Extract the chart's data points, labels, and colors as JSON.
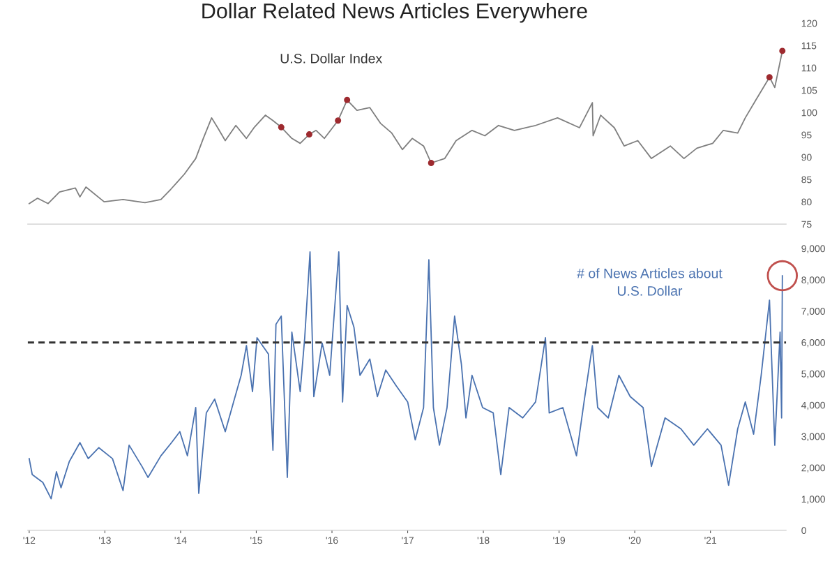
{
  "chart_data": [
    {
      "type": "line",
      "title": "Dollar Related News Articles Everywhere",
      "xlim": [
        2011.98,
        2022.0
      ],
      "ylim": [
        75,
        120
      ],
      "yticks": [
        75,
        80,
        85,
        90,
        95,
        100,
        105,
        110,
        115,
        120
      ],
      "tick_labels": "y",
      "series": [
        {
          "name": "U.S. Dollar Index",
          "color": "#7f7f7f",
          "x": [
            2012.0,
            2012.11,
            2012.25,
            2012.4,
            2012.61,
            2012.67,
            2012.75,
            2012.99,
            2013.24,
            2013.53,
            2013.74,
            2013.87,
            2014.05,
            2014.2,
            2014.3,
            2014.41,
            2014.49,
            2014.59,
            2014.73,
            2014.87,
            2014.97,
            2015.12,
            2015.22,
            2015.33,
            2015.47,
            2015.58,
            2015.7,
            2015.79,
            2015.9,
            2016.08,
            2016.2,
            2016.33,
            2016.5,
            2016.64,
            2016.79,
            2016.93,
            2017.06,
            2017.21,
            2017.31,
            2017.49,
            2017.64,
            2017.85,
            2018.02,
            2018.2,
            2018.41,
            2018.69,
            2018.98,
            2019.27,
            2019.44,
            2019.45,
            2019.55,
            2019.73,
            2019.86,
            2020.04,
            2020.22,
            2020.47,
            2020.65,
            2020.82,
            2021.03,
            2021.17,
            2021.36,
            2021.46,
            2021.6,
            2021.78,
            2021.85,
            2021.95
          ],
          "values": [
            79.6,
            80.8,
            79.6,
            82.2,
            83.1,
            81.1,
            83.3,
            80.0,
            80.5,
            79.8,
            80.5,
            82.8,
            86.2,
            89.7,
            94.2,
            98.8,
            96.6,
            93.7,
            97.1,
            94.2,
            96.6,
            99.4,
            98.2,
            96.7,
            94.2,
            93.1,
            95.1,
            96.0,
            94.2,
            98.2,
            102.8,
            100.5,
            101.1,
            97.6,
            95.4,
            91.7,
            94.2,
            92.5,
            88.7,
            89.7,
            93.7,
            96.0,
            94.8,
            97.1,
            96.0,
            97.1,
            98.8,
            96.6,
            102.2,
            94.8,
            99.4,
            96.6,
            92.5,
            93.7,
            89.7,
            92.5,
            89.7,
            92.0,
            93.1,
            96.0,
            95.4,
            98.8,
            102.8,
            107.9,
            105.6,
            113.8
          ]
        },
        {
          "type": "scatter",
          "color": "#9e2a2f",
          "x": [
            2015.33,
            2015.7,
            2016.08,
            2016.2,
            2017.31,
            2021.78,
            2021.95
          ],
          "values": [
            96.7,
            95.1,
            98.2,
            102.8,
            88.7,
            107.9,
            113.8
          ]
        }
      ]
    },
    {
      "type": "line",
      "xlim": [
        2011.98,
        2022.0
      ],
      "ylim": [
        0,
        9000
      ],
      "xticks": [
        {
          "value": 2012,
          "label": "'12"
        },
        {
          "value": 2013,
          "label": "'13"
        },
        {
          "value": 2014,
          "label": "'14"
        },
        {
          "value": 2015,
          "label": "'15"
        },
        {
          "value": 2016,
          "label": "'16"
        },
        {
          "value": 2017,
          "label": "'17"
        },
        {
          "value": 2018,
          "label": "'18"
        },
        {
          "value": 2019,
          "label": "'19"
        },
        {
          "value": 2020,
          "label": "'20"
        },
        {
          "value": 2021,
          "label": "'21"
        }
      ],
      "yticks": [
        0,
        {
          "value": 1000,
          "label": "1,000"
        },
        {
          "value": 2000,
          "label": "2,000"
        },
        {
          "value": 3000,
          "label": "3,000"
        },
        {
          "value": 4000,
          "label": "4,000"
        },
        {
          "value": 5000,
          "label": "5,000"
        },
        {
          "value": 6000,
          "label": "6,000"
        },
        {
          "value": 7000,
          "label": "7,000"
        },
        {
          "value": 8000,
          "label": "8,000"
        },
        {
          "value": 9000,
          "label": "9,000"
        }
      ],
      "ref_lines": [
        {
          "axis": "y",
          "value": 6000,
          "color": "#333333",
          "line_style": "dashed"
        }
      ],
      "series": [
        {
          "name": "# of News Articles about\nU.S. Dollar",
          "color": "#4a72b0",
          "x": [
            2012.0,
            2012.04,
            2012.18,
            2012.29,
            2012.36,
            2012.42,
            2012.53,
            2012.67,
            2012.78,
            2012.92,
            2013.1,
            2013.24,
            2013.32,
            2013.49,
            2013.57,
            2013.74,
            2013.88,
            2013.99,
            2014.09,
            2014.2,
            2014.24,
            2014.34,
            2014.45,
            2014.59,
            2014.7,
            2014.8,
            2014.87,
            2014.95,
            2015.01,
            2015.16,
            2015.22,
            2015.26,
            2015.33,
            2015.41,
            2015.47,
            2015.58,
            2015.64,
            2015.71,
            2015.76,
            2015.87,
            2015.97,
            2016.09,
            2016.14,
            2016.2,
            2016.29,
            2016.37,
            2016.5,
            2016.6,
            2016.71,
            2016.85,
            2017.0,
            2017.1,
            2017.21,
            2017.28,
            2017.34,
            2017.42,
            2017.52,
            2017.62,
            2017.71,
            2017.77,
            2017.85,
            2017.99,
            2018.13,
            2018.23,
            2018.34,
            2018.52,
            2018.69,
            2018.82,
            2018.87,
            2019.05,
            2019.23,
            2019.33,
            2019.44,
            2019.51,
            2019.65,
            2019.79,
            2019.94,
            2020.11,
            2020.22,
            2020.4,
            2020.61,
            2020.78,
            2020.96,
            2021.14,
            2021.24,
            2021.36,
            2021.46,
            2021.57,
            2021.67,
            2021.78,
            2021.85,
            2021.92,
            2021.94,
            2021.95
          ],
          "values": [
            2290,
            1780,
            1530,
            1010,
            1870,
            1360,
            2200,
            2800,
            2290,
            2640,
            2290,
            1270,
            2720,
            2040,
            1690,
            2380,
            2800,
            3150,
            2380,
            3920,
            1180,
            3750,
            4190,
            3150,
            4100,
            4950,
            5900,
            4430,
            6150,
            5630,
            2560,
            6580,
            6840,
            1690,
            6330,
            4430,
            6150,
            8890,
            4270,
            5980,
            4950,
            8890,
            4100,
            7180,
            6490,
            4950,
            5470,
            4270,
            5120,
            4610,
            4100,
            2890,
            3920,
            8640,
            3920,
            2720,
            3920,
            6840,
            5300,
            3590,
            4950,
            3920,
            3750,
            1780,
            3920,
            3590,
            4100,
            6150,
            3750,
            3920,
            2380,
            4100,
            5900,
            3920,
            3590,
            4950,
            4270,
            3920,
            2040,
            3590,
            3240,
            2720,
            3240,
            2720,
            1440,
            3240,
            4100,
            3070,
            4950,
            7350,
            2720,
            6330,
            3590,
            8130
          ]
        }
      ]
    }
  ]
}
